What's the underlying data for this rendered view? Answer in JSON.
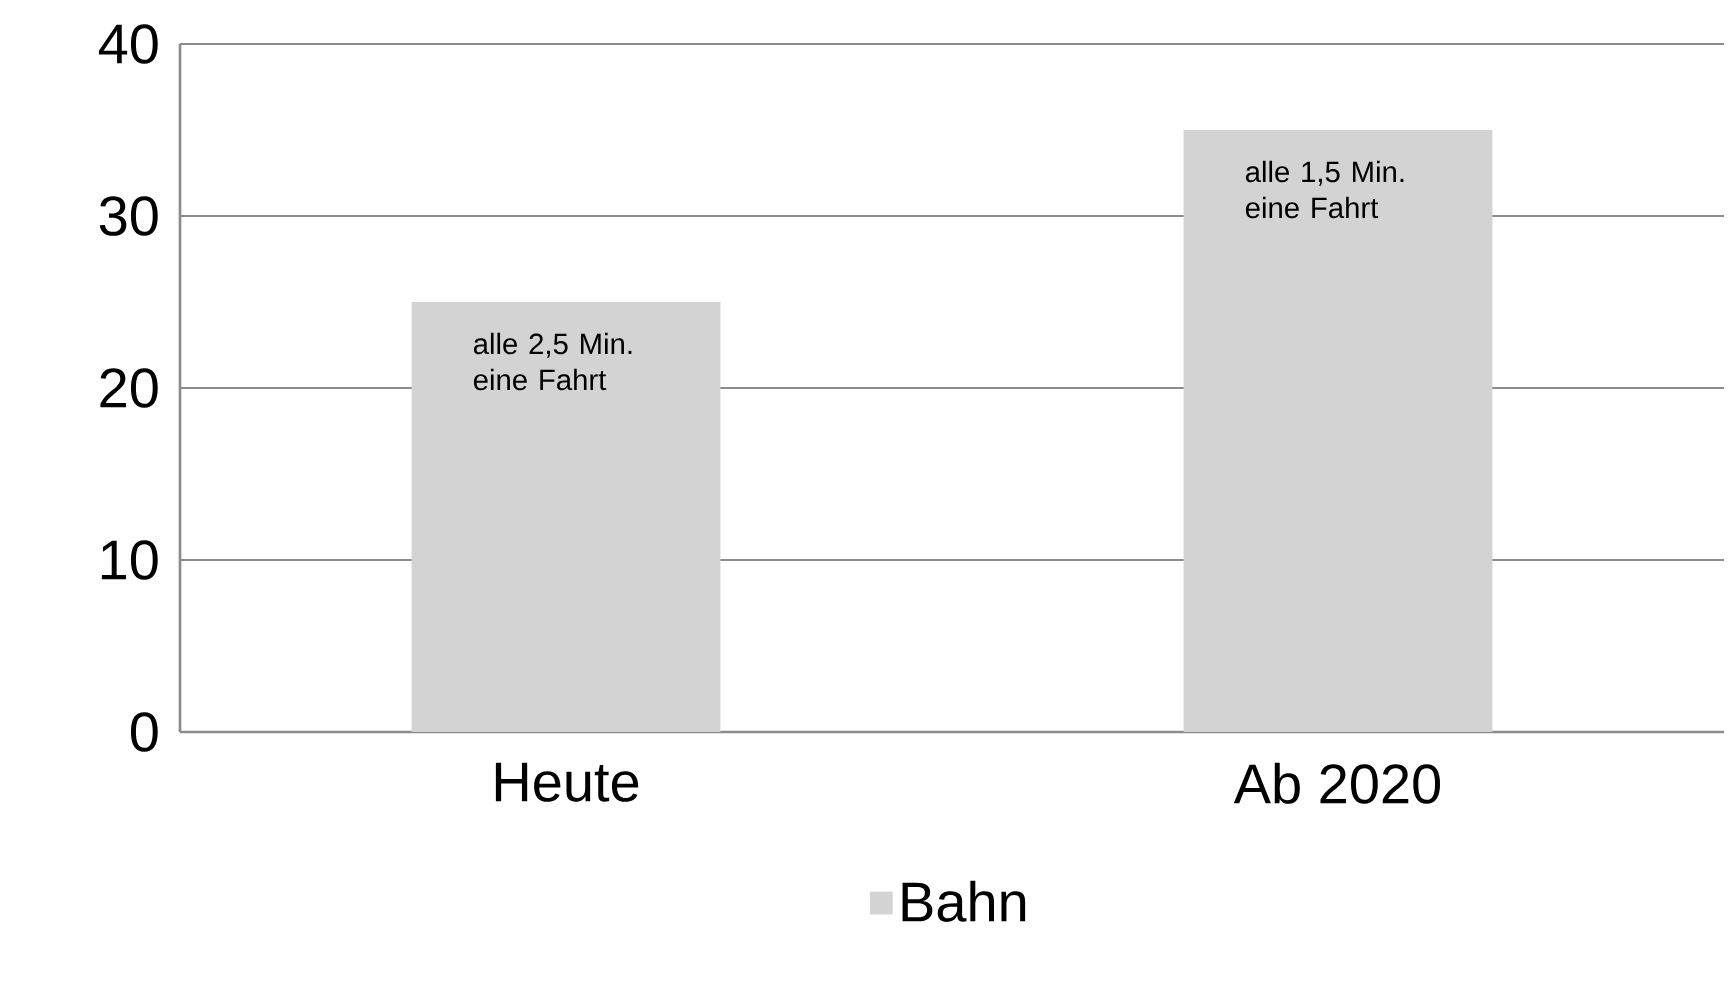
{
  "chart_data": {
    "type": "bar",
    "categories": [
      "Heute",
      "Ab 2020"
    ],
    "series": [
      {
        "name": "Bahn",
        "color": "#d3d3d3",
        "values": [
          25,
          35
        ]
      }
    ],
    "ylim": [
      0,
      40
    ],
    "yticks": [
      0,
      10,
      20,
      30,
      40
    ],
    "grid": "y",
    "legend": "bottom",
    "annotations": [
      {
        "text": "alle 2,5 Min. eine Fahrt",
        "x": "Heute",
        "y": 25
      },
      {
        "text": "alle 1,5 Min. eine Fahrt",
        "x": "Ab 2020",
        "y": 35
      }
    ]
  }
}
